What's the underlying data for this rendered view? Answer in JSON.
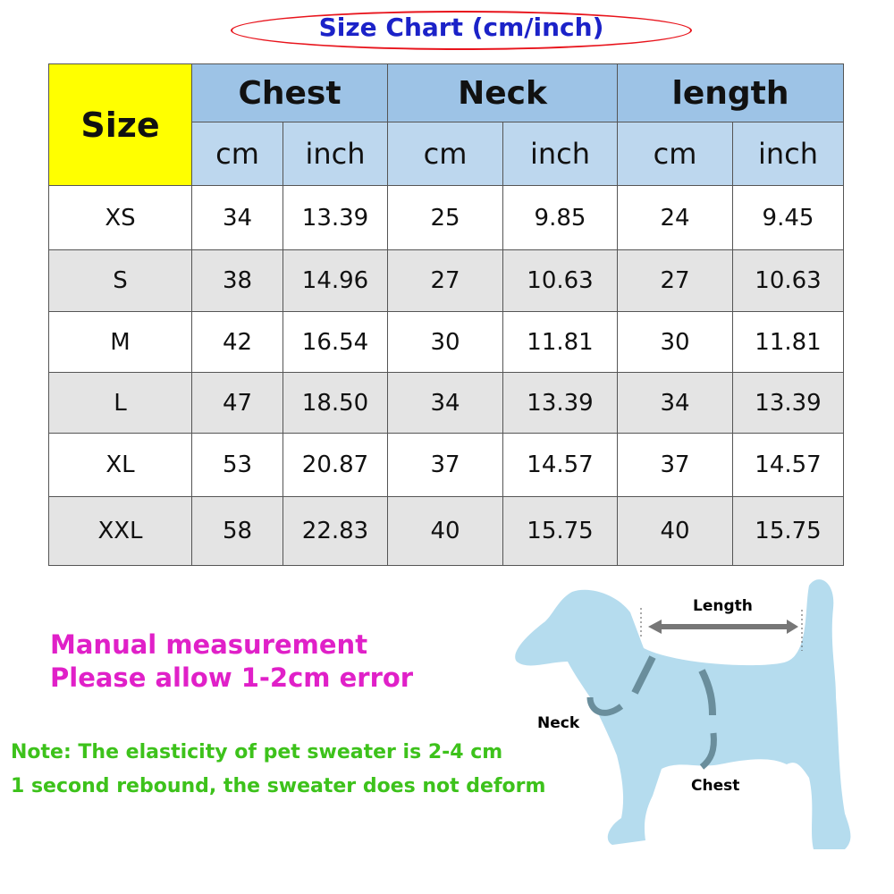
{
  "title": "Size Chart (cm/inch)",
  "table": {
    "size_header": "Size",
    "groups": [
      "Chest",
      "Neck",
      "length"
    ],
    "units": [
      "cm",
      "inch",
      "cm",
      "inch",
      "cm",
      "inch"
    ],
    "rows": [
      [
        "XS",
        "34",
        "13.39",
        "25",
        "9.85",
        "24",
        "9.45"
      ],
      [
        "S",
        "38",
        "14.96",
        "27",
        "10.63",
        "27",
        "10.63"
      ],
      [
        "M",
        "42",
        "16.54",
        "30",
        "11.81",
        "30",
        "11.81"
      ],
      [
        "L",
        "47",
        "18.50",
        "34",
        "13.39",
        "34",
        "13.39"
      ],
      [
        "XL",
        "53",
        "20.87",
        "37",
        "14.57",
        "37",
        "14.57"
      ],
      [
        "XXL",
        "58",
        "22.83",
        "40",
        "15.75",
        "40",
        "15.75"
      ]
    ]
  },
  "notes": {
    "manual": [
      "Manual measurement",
      "Please allow 1-2cm error"
    ],
    "elastic": [
      "Note: The elasticity of pet sweater is 2-4 cm",
      "1 second rebound, the sweater does not deform"
    ]
  },
  "diagram": {
    "length": "Length",
    "neck": "Neck",
    "chest": "Chest"
  },
  "colors": {
    "title": "#1b22c8",
    "oval": "#e8141c",
    "header": "#9dc3e6",
    "subheader": "#bdd7ee",
    "size_cell": "#ffff00",
    "manual": "#e020c8",
    "elastic": "#3dc21b",
    "dog": "#b5dcee"
  }
}
